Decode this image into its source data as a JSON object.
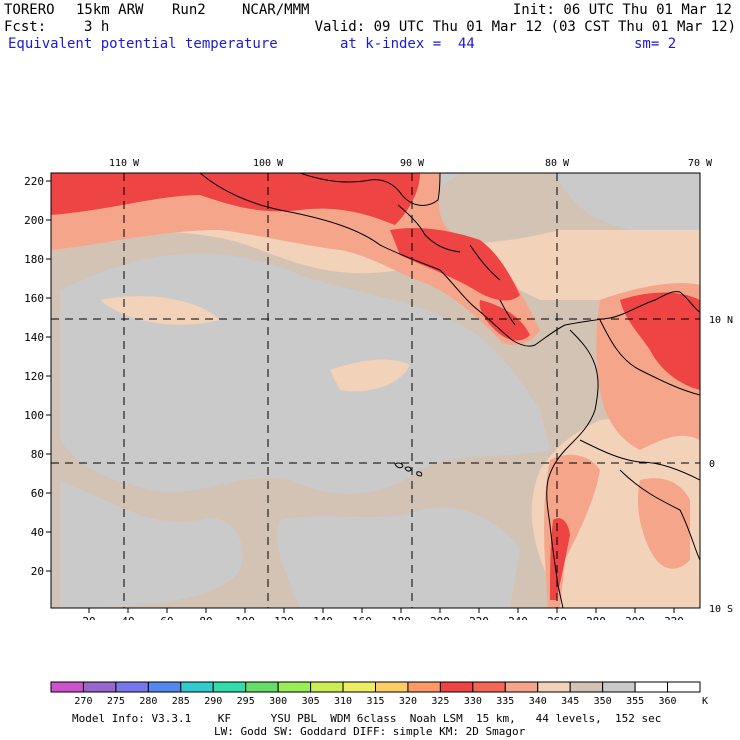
{
  "header": {
    "model": "TORERO",
    "resolution": "15km ARW",
    "run": "Run2",
    "org": "NCAR/MMM",
    "init": "Init: 06 UTC Thu 01 Mar 12",
    "fcst_label": "Fcst:",
    "fcst_value": "3 h",
    "valid": "Valid: 09 UTC Thu 01 Mar 12 (03 CST Thu 01 Mar 12)",
    "field": "Equivalent potential temperature",
    "level": "at k-index =  44",
    "smoothing": "sm= 2"
  },
  "map": {
    "lon_labels": [
      "110 W",
      "100 W",
      "90 W",
      "80 W",
      "70 W"
    ],
    "lat_labels": [
      "10 N",
      "0",
      "10 S"
    ],
    "y_ticks": [
      "220",
      "200",
      "180",
      "160",
      "140",
      "120",
      "100",
      "80",
      "60",
      "40",
      "20"
    ],
    "x_ticks": [
      "20",
      "40",
      "60",
      "80",
      "100",
      "120",
      "140",
      "160",
      "180",
      "200",
      "220",
      "240",
      "260",
      "280",
      "300",
      "320"
    ]
  },
  "colorbar": {
    "labels": [
      "270",
      "275",
      "280",
      "285",
      "290",
      "295",
      "300",
      "305",
      "310",
      "315",
      "320",
      "325",
      "330",
      "335",
      "340",
      "345",
      "350",
      "355",
      "360"
    ],
    "unit": "K",
    "colors": [
      "#cc55cc",
      "#9966cc",
      "#7777ee",
      "#5588ee",
      "#33cccc",
      "#33ddaa",
      "#66dd66",
      "#99ee55",
      "#ccee55",
      "#eeee66",
      "#ffcc66",
      "#ff9966",
      "#ee4444",
      "#f56655",
      "#f5a58a",
      "#f2d2b8",
      "#d2c3b5",
      "#cacaca",
      "#ffffff",
      "#ffffff"
    ]
  },
  "footer": {
    "line1": "Model Info: V3.3.1    KF      YSU PBL  WDM 6class  Noah LSM  15 km,   44 levels,  152 sec",
    "line2": "LW: Godd SW: Goddard DIFF: simple KM: 2D Smagor"
  }
}
